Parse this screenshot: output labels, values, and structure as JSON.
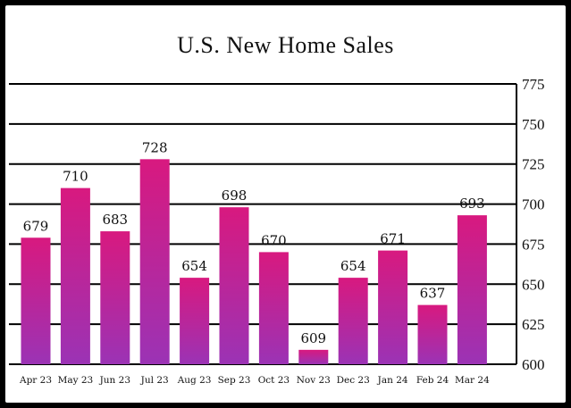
{
  "chart_data": {
    "type": "bar",
    "title": "U.S. New Home Sales",
    "xlabel": "",
    "ylabel": "",
    "categories": [
      "Apr 23",
      "May 23",
      "Jun 23",
      "Jul 23",
      "Aug 23",
      "Sep 23",
      "Oct 23",
      "Nov 23",
      "Dec 23",
      "Jan 24",
      "Feb 24",
      "Mar 24"
    ],
    "values": [
      679,
      710,
      683,
      728,
      654,
      698,
      670,
      609,
      654,
      671,
      637,
      693
    ],
    "data_labels": [
      "679",
      "710",
      "683",
      "728",
      "654",
      "698",
      "670",
      "609",
      "654",
      "671",
      "637",
      "693"
    ],
    "ylim": [
      600,
      775
    ],
    "yticks": [
      600,
      625,
      650,
      675,
      700,
      725,
      750,
      775
    ],
    "ytick_labels": [
      "600",
      "625",
      "650",
      "675",
      "700",
      "725",
      "750",
      "775"
    ],
    "y_axis_side": "right",
    "grid": true,
    "legend": "none",
    "colors": {
      "bar_top": "#d8197f",
      "bar_bottom": "#9b33b5",
      "grid": "#000000",
      "text": "#111111"
    }
  }
}
